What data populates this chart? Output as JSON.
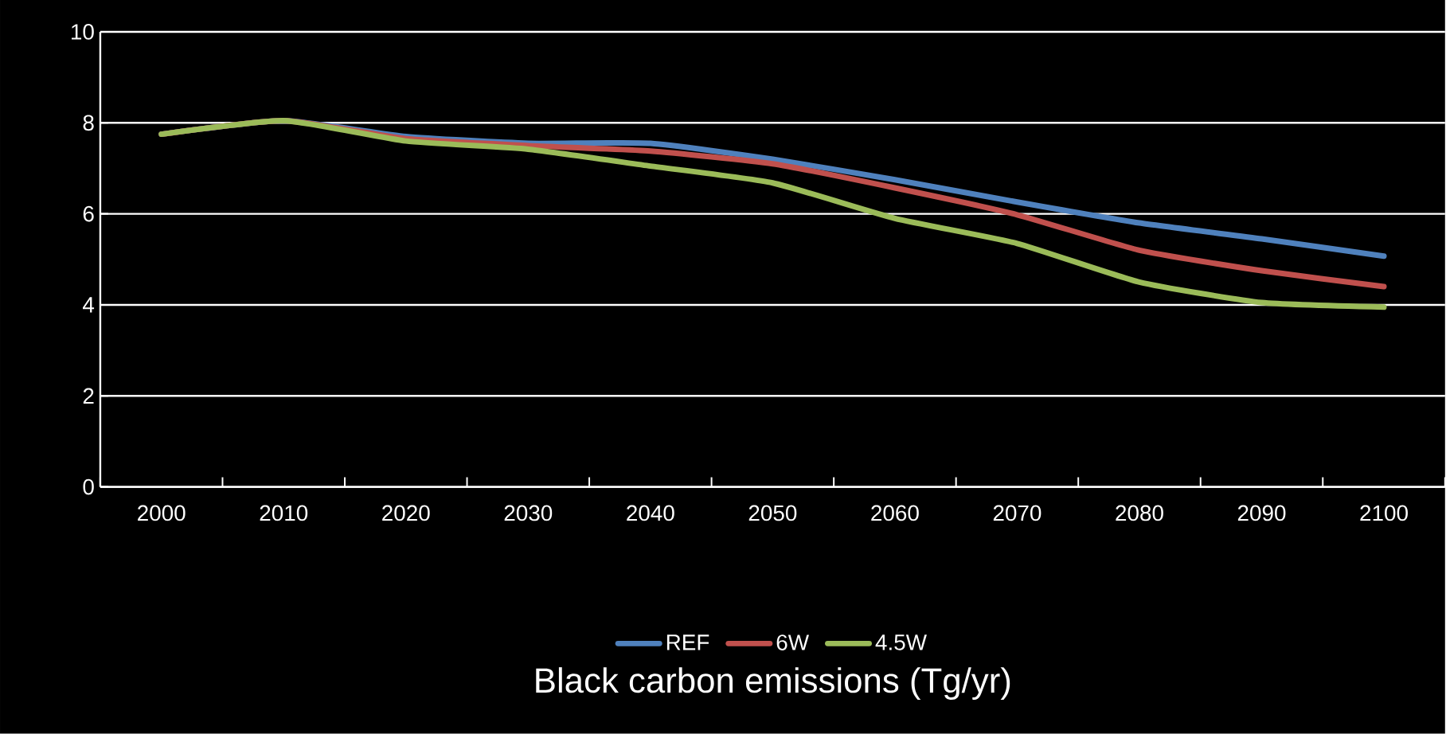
{
  "chart_data": {
    "type": "line",
    "title": "Black carbon emissions (Tg/yr)",
    "categories": [
      "2000",
      "2010",
      "2020",
      "2030",
      "2040",
      "2050",
      "2060",
      "2070",
      "2080",
      "2090",
      "2100"
    ],
    "series": [
      {
        "name": "REF",
        "color": "#4f81bd",
        "values": [
          7.75,
          8.05,
          7.7,
          7.55,
          7.55,
          7.2,
          6.75,
          6.26,
          5.8,
          5.45,
          5.07
        ]
      },
      {
        "name": "6W",
        "color": "#c0504d",
        "values": [
          7.75,
          8.05,
          7.65,
          7.5,
          7.38,
          7.1,
          6.57,
          5.98,
          5.2,
          4.75,
          4.4
        ]
      },
      {
        "name": "4.5W",
        "color": "#9bbb59",
        "values": [
          7.75,
          8.05,
          7.6,
          7.42,
          7.05,
          6.68,
          5.9,
          5.35,
          4.5,
          4.05,
          3.95
        ]
      }
    ],
    "ylim": [
      0,
      10
    ],
    "yticks": [
      0,
      2,
      4,
      6,
      8,
      10
    ],
    "grid": "y",
    "legend": "bottom"
  }
}
